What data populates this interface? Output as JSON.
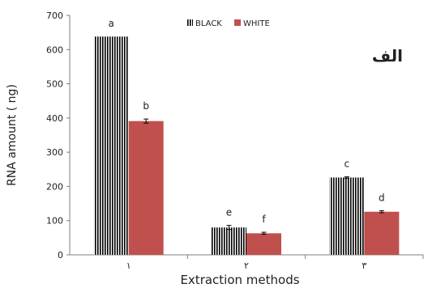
{
  "chart_data": {
    "type": "bar",
    "title": "",
    "panel_label": "الف",
    "xlabel": "Extraction methods",
    "ylabel": "RNA amount ( ng)",
    "categories": [
      "١",
      "٢",
      "٣"
    ],
    "ylim": [
      0,
      700
    ],
    "yticks": [
      0,
      100,
      200,
      300,
      400,
      500,
      600,
      700
    ],
    "grid": false,
    "legend_position": "top-center",
    "series": [
      {
        "name": "BLACK",
        "pattern": "vertical-stripes",
        "color": "#000000",
        "values": [
          638,
          80,
          226
        ],
        "errors": [
          0,
          6,
          2
        ],
        "letters": [
          "a",
          "e",
          "c"
        ]
      },
      {
        "name": "WHITE",
        "pattern": "solid",
        "color": "#c0504d",
        "values": [
          391,
          63,
          126
        ],
        "errors": [
          6,
          3,
          3
        ],
        "letters": [
          "b",
          "f",
          "d"
        ]
      }
    ]
  }
}
